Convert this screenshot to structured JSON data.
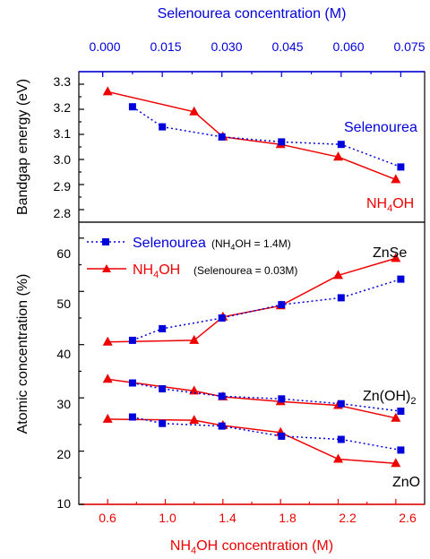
{
  "colors": {
    "nh4oh": "#ee0000",
    "selenourea": "#0000dd",
    "axis": "#000000"
  },
  "top_axis": {
    "label": "Selenourea concentration (M)",
    "ticks": [
      "0.000",
      "0.015",
      "0.030",
      "0.045",
      "0.060",
      "0.075"
    ]
  },
  "bottom_axis": {
    "label": "NH4OH concentration (M)",
    "label_base": "NH",
    "label_sub": "4",
    "label_rest": "OH concentration (M)",
    "ticks": [
      "0.6",
      "1.0",
      "1.4",
      "1.8",
      "2.2",
      "2.6"
    ]
  },
  "upper_panel": {
    "ylabel": "Bandgap energy (eV)",
    "yticks": [
      "2.8",
      "2.9",
      "3.0",
      "3.1",
      "3.2",
      "3.3"
    ],
    "annotations": {
      "selenourea": "Selenourea",
      "nh4oh_base": "NH",
      "nh4oh_sub": "4",
      "nh4oh_rest": "OH"
    }
  },
  "lower_panel": {
    "ylabel": "Atomic concentration (%)",
    "yticks": [
      "10",
      "20",
      "30",
      "40",
      "50",
      "60"
    ],
    "annotations": {
      "znse": "ZnSe",
      "znoh_base": "Zn(OH)",
      "znoh_sub": "2",
      "zno": "ZnO"
    },
    "legend": {
      "sel_name": "Selenourea",
      "sel_note_a": "(NH",
      "sel_note_sub": "4",
      "sel_note_b": "OH = 1.4M)",
      "nh_name_a": "NH",
      "nh_name_sub": "4",
      "nh_name_b": "OH",
      "nh_note": "(Selenourea = 0.03M)"
    }
  },
  "chart_data": [
    {
      "type": "line",
      "panel": "bandgap",
      "ylabel": "Bandgap energy (eV)",
      "ylim": [
        2.75,
        3.35
      ],
      "x_nh4oh_lim": [
        0.4,
        2.8
      ],
      "x_selenourea_lim": [
        -0.006,
        0.081
      ],
      "series": [
        {
          "name": "NH4OH",
          "x_axis": "bottom",
          "x": [
            0.6,
            1.2,
            1.4,
            1.8,
            2.2,
            2.6
          ],
          "y": [
            3.27,
            3.19,
            3.09,
            3.06,
            3.01,
            2.92
          ]
        },
        {
          "name": "Selenourea",
          "x_axis": "top",
          "x": [
            0.0075,
            0.015,
            0.03,
            0.045,
            0.06,
            0.075
          ],
          "y": [
            3.21,
            3.13,
            3.09,
            3.07,
            3.06,
            2.97
          ]
        }
      ]
    },
    {
      "type": "line",
      "panel": "atomic",
      "ylabel": "Atomic concentration (%)",
      "ylim": [
        10,
        63
      ],
      "x_nh4oh_lim": [
        0.4,
        2.8
      ],
      "x_selenourea_lim": [
        -0.006,
        0.081
      ],
      "series": [
        {
          "name": "NH4OH ZnSe",
          "x_axis": "bottom",
          "x": [
            0.6,
            1.2,
            1.4,
            1.8,
            2.2,
            2.6
          ],
          "y": [
            40.5,
            40.8,
            45.2,
            47.3,
            53.0,
            56.2
          ]
        },
        {
          "name": "Selenourea ZnSe",
          "x_axis": "top",
          "x": [
            0.0075,
            0.015,
            0.03,
            0.045,
            0.06,
            0.075
          ],
          "y": [
            40.8,
            43.0,
            45.0,
            47.5,
            48.8,
            52.3
          ]
        },
        {
          "name": "NH4OH Zn(OH)2",
          "x_axis": "bottom",
          "x": [
            0.6,
            1.2,
            1.4,
            1.8,
            2.2,
            2.6
          ],
          "y": [
            33.5,
            31.3,
            30.2,
            29.3,
            28.6,
            26.2
          ]
        },
        {
          "name": "Selenourea Zn(OH)2",
          "x_axis": "top",
          "x": [
            0.0075,
            0.015,
            0.03,
            0.045,
            0.06,
            0.075
          ],
          "y": [
            32.8,
            31.7,
            30.3,
            29.8,
            28.9,
            27.5
          ]
        },
        {
          "name": "NH4OH ZnO",
          "x_axis": "bottom",
          "x": [
            0.6,
            1.2,
            1.4,
            1.8,
            2.2,
            2.6
          ],
          "y": [
            26.0,
            25.8,
            24.8,
            23.5,
            18.5,
            17.7
          ]
        },
        {
          "name": "Selenourea ZnO",
          "x_axis": "top",
          "x": [
            0.0075,
            0.015,
            0.03,
            0.045,
            0.06,
            0.075
          ],
          "y": [
            26.4,
            25.2,
            24.7,
            22.8,
            22.2,
            20.2
          ]
        }
      ]
    }
  ]
}
